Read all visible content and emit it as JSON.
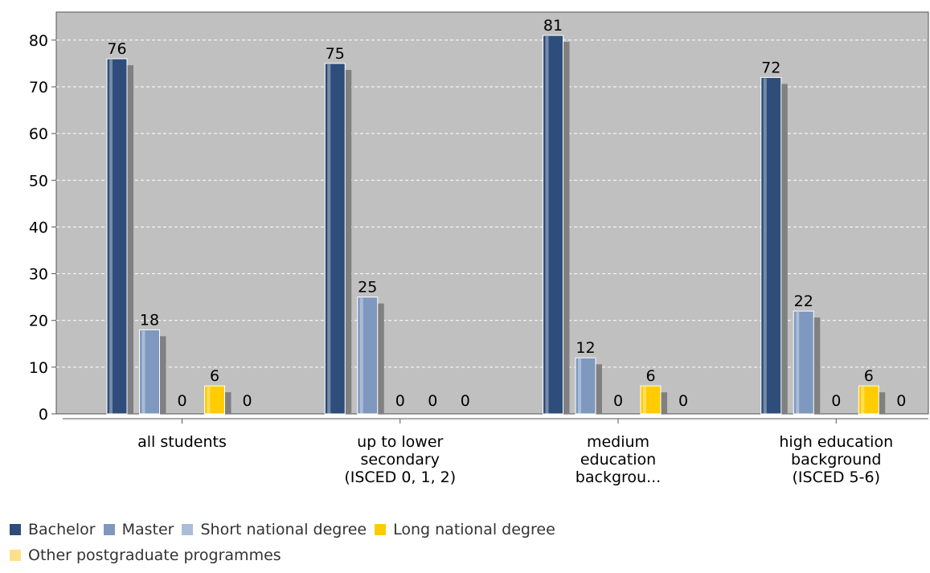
{
  "chart_data": {
    "type": "bar",
    "categories": [
      "all students",
      "up to lower\nsecondary\n(ISCED 0, 1, 2)",
      "medium\neducation\nbackgrou...",
      "high education\nbackground\n(ISCED 5-6)"
    ],
    "series": [
      {
        "name": "Bachelor",
        "values": [
          76,
          75,
          81,
          72
        ],
        "color": "#2e4d7a"
      },
      {
        "name": "Master",
        "values": [
          18,
          25,
          12,
          22
        ],
        "color": "#7e98bf"
      },
      {
        "name": "Short national degree",
        "values": [
          0,
          0,
          0,
          0
        ],
        "color": "#a9bdd8"
      },
      {
        "name": "Long national degree",
        "values": [
          6,
          0,
          6,
          6
        ],
        "color": "#ffcc00"
      },
      {
        "name": "Other postgraduate programmes",
        "values": [
          0,
          0,
          0,
          0
        ],
        "color": "#ffe08a"
      }
    ],
    "yticks": [
      0,
      10,
      20,
      30,
      40,
      50,
      60,
      70,
      80
    ],
    "ylim": [
      0,
      86
    ],
    "grid": true,
    "legend_position": "bottom",
    "plot_background": "#c0c0c0"
  }
}
